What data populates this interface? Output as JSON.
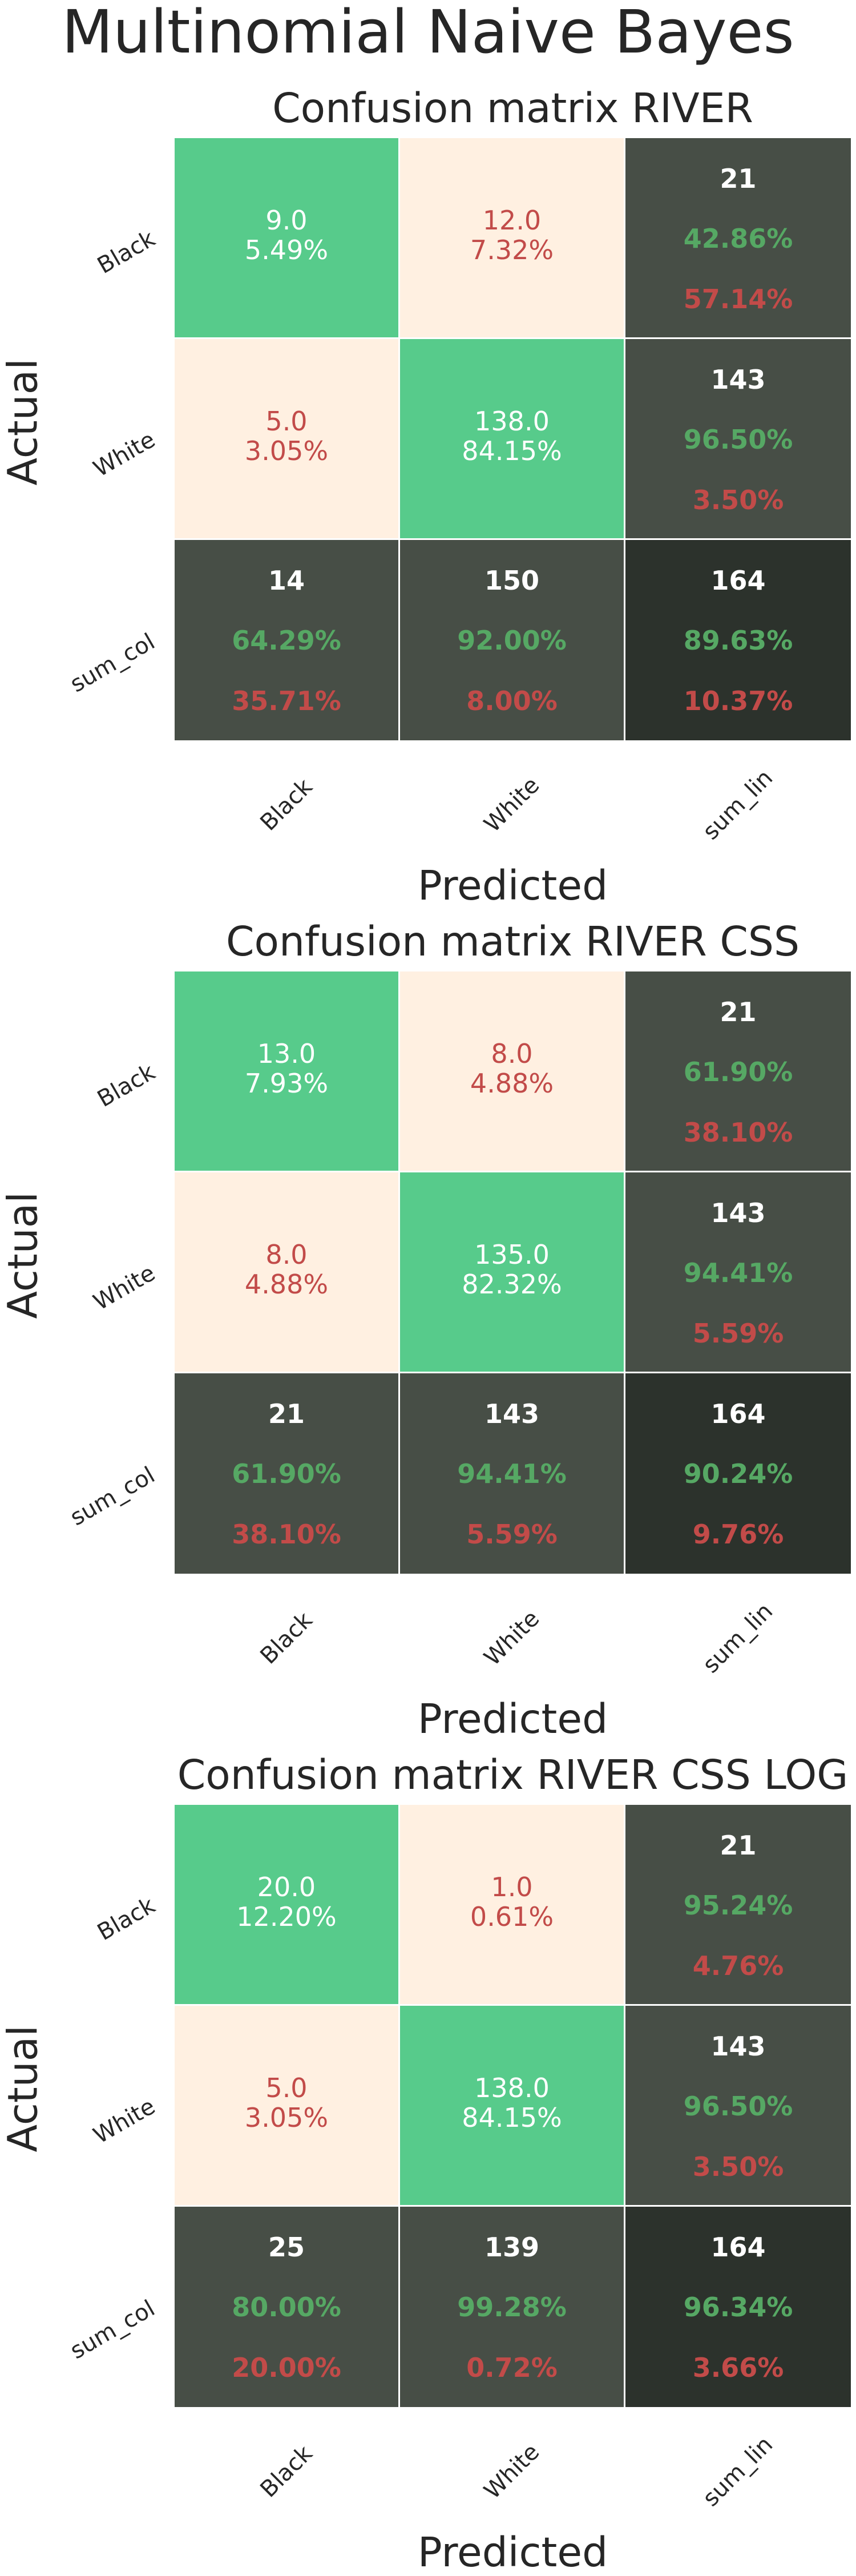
{
  "title": "Multinomial Naive Bayes",
  "colors": {
    "diag": "#57cb8b",
    "offdiag": "#fff0e1",
    "sum": "#474e46",
    "total": "#2c322c",
    "green_text": "#56a864",
    "red_text": "#c24b49",
    "white_text": "#ffffff"
  },
  "chart_data": [
    {
      "type": "heatmap",
      "title": "Confusion matrix RIVER",
      "xlabel": "Predicted",
      "ylabel": "Actual",
      "x_categories": [
        "Black",
        "White",
        "sum_lin"
      ],
      "y_categories": [
        "Black",
        "White",
        "sum_col"
      ],
      "matrix": [
        [
          9.0,
          12.0
        ],
        [
          5.0,
          138.0
        ]
      ],
      "matrix_labels": [
        [
          "9.0",
          "12.0"
        ],
        [
          "5.0",
          "138.0"
        ]
      ],
      "matrix_percent": [
        [
          "5.49%",
          "7.32%"
        ],
        [
          "3.05%",
          "84.15%"
        ]
      ],
      "row_sums": [
        {
          "count": "21",
          "correct": "42.86%",
          "error": "57.14%"
        },
        {
          "count": "143",
          "correct": "96.50%",
          "error": "3.50%"
        }
      ],
      "col_sums": [
        {
          "count": "14",
          "correct": "64.29%",
          "error": "35.71%"
        },
        {
          "count": "150",
          "correct": "92.00%",
          "error": "8.00%"
        }
      ],
      "total": {
        "count": "164",
        "correct": "89.63%",
        "error": "10.37%"
      }
    },
    {
      "type": "heatmap",
      "title": "Confusion matrix RIVER CSS",
      "xlabel": "Predicted",
      "ylabel": "Actual",
      "x_categories": [
        "Black",
        "White",
        "sum_lin"
      ],
      "y_categories": [
        "Black",
        "White",
        "sum_col"
      ],
      "matrix": [
        [
          13.0,
          8.0
        ],
        [
          8.0,
          135.0
        ]
      ],
      "matrix_labels": [
        [
          "13.0",
          "8.0"
        ],
        [
          "8.0",
          "135.0"
        ]
      ],
      "matrix_percent": [
        [
          "7.93%",
          "4.88%"
        ],
        [
          "4.88%",
          "82.32%"
        ]
      ],
      "row_sums": [
        {
          "count": "21",
          "correct": "61.90%",
          "error": "38.10%"
        },
        {
          "count": "143",
          "correct": "94.41%",
          "error": "5.59%"
        }
      ],
      "col_sums": [
        {
          "count": "21",
          "correct": "61.90%",
          "error": "38.10%"
        },
        {
          "count": "143",
          "correct": "94.41%",
          "error": "5.59%"
        }
      ],
      "total": {
        "count": "164",
        "correct": "90.24%",
        "error": "9.76%"
      }
    },
    {
      "type": "heatmap",
      "title": "Confusion matrix RIVER CSS LOG",
      "xlabel": "Predicted",
      "ylabel": "Actual",
      "x_categories": [
        "Black",
        "White",
        "sum_lin"
      ],
      "y_categories": [
        "Black",
        "White",
        "sum_col"
      ],
      "matrix": [
        [
          20.0,
          1.0
        ],
        [
          5.0,
          138.0
        ]
      ],
      "matrix_labels": [
        [
          "20.0",
          "1.0"
        ],
        [
          "5.0",
          "138.0"
        ]
      ],
      "matrix_percent": [
        [
          "12.20%",
          "0.61%"
        ],
        [
          "3.05%",
          "84.15%"
        ]
      ],
      "row_sums": [
        {
          "count": "21",
          "correct": "95.24%",
          "error": "4.76%"
        },
        {
          "count": "143",
          "correct": "96.50%",
          "error": "3.50%"
        }
      ],
      "col_sums": [
        {
          "count": "25",
          "correct": "80.00%",
          "error": "20.00%"
        },
        {
          "count": "139",
          "correct": "99.28%",
          "error": "0.72%"
        }
      ],
      "total": {
        "count": "164",
        "correct": "96.34%",
        "error": "3.66%"
      }
    }
  ]
}
